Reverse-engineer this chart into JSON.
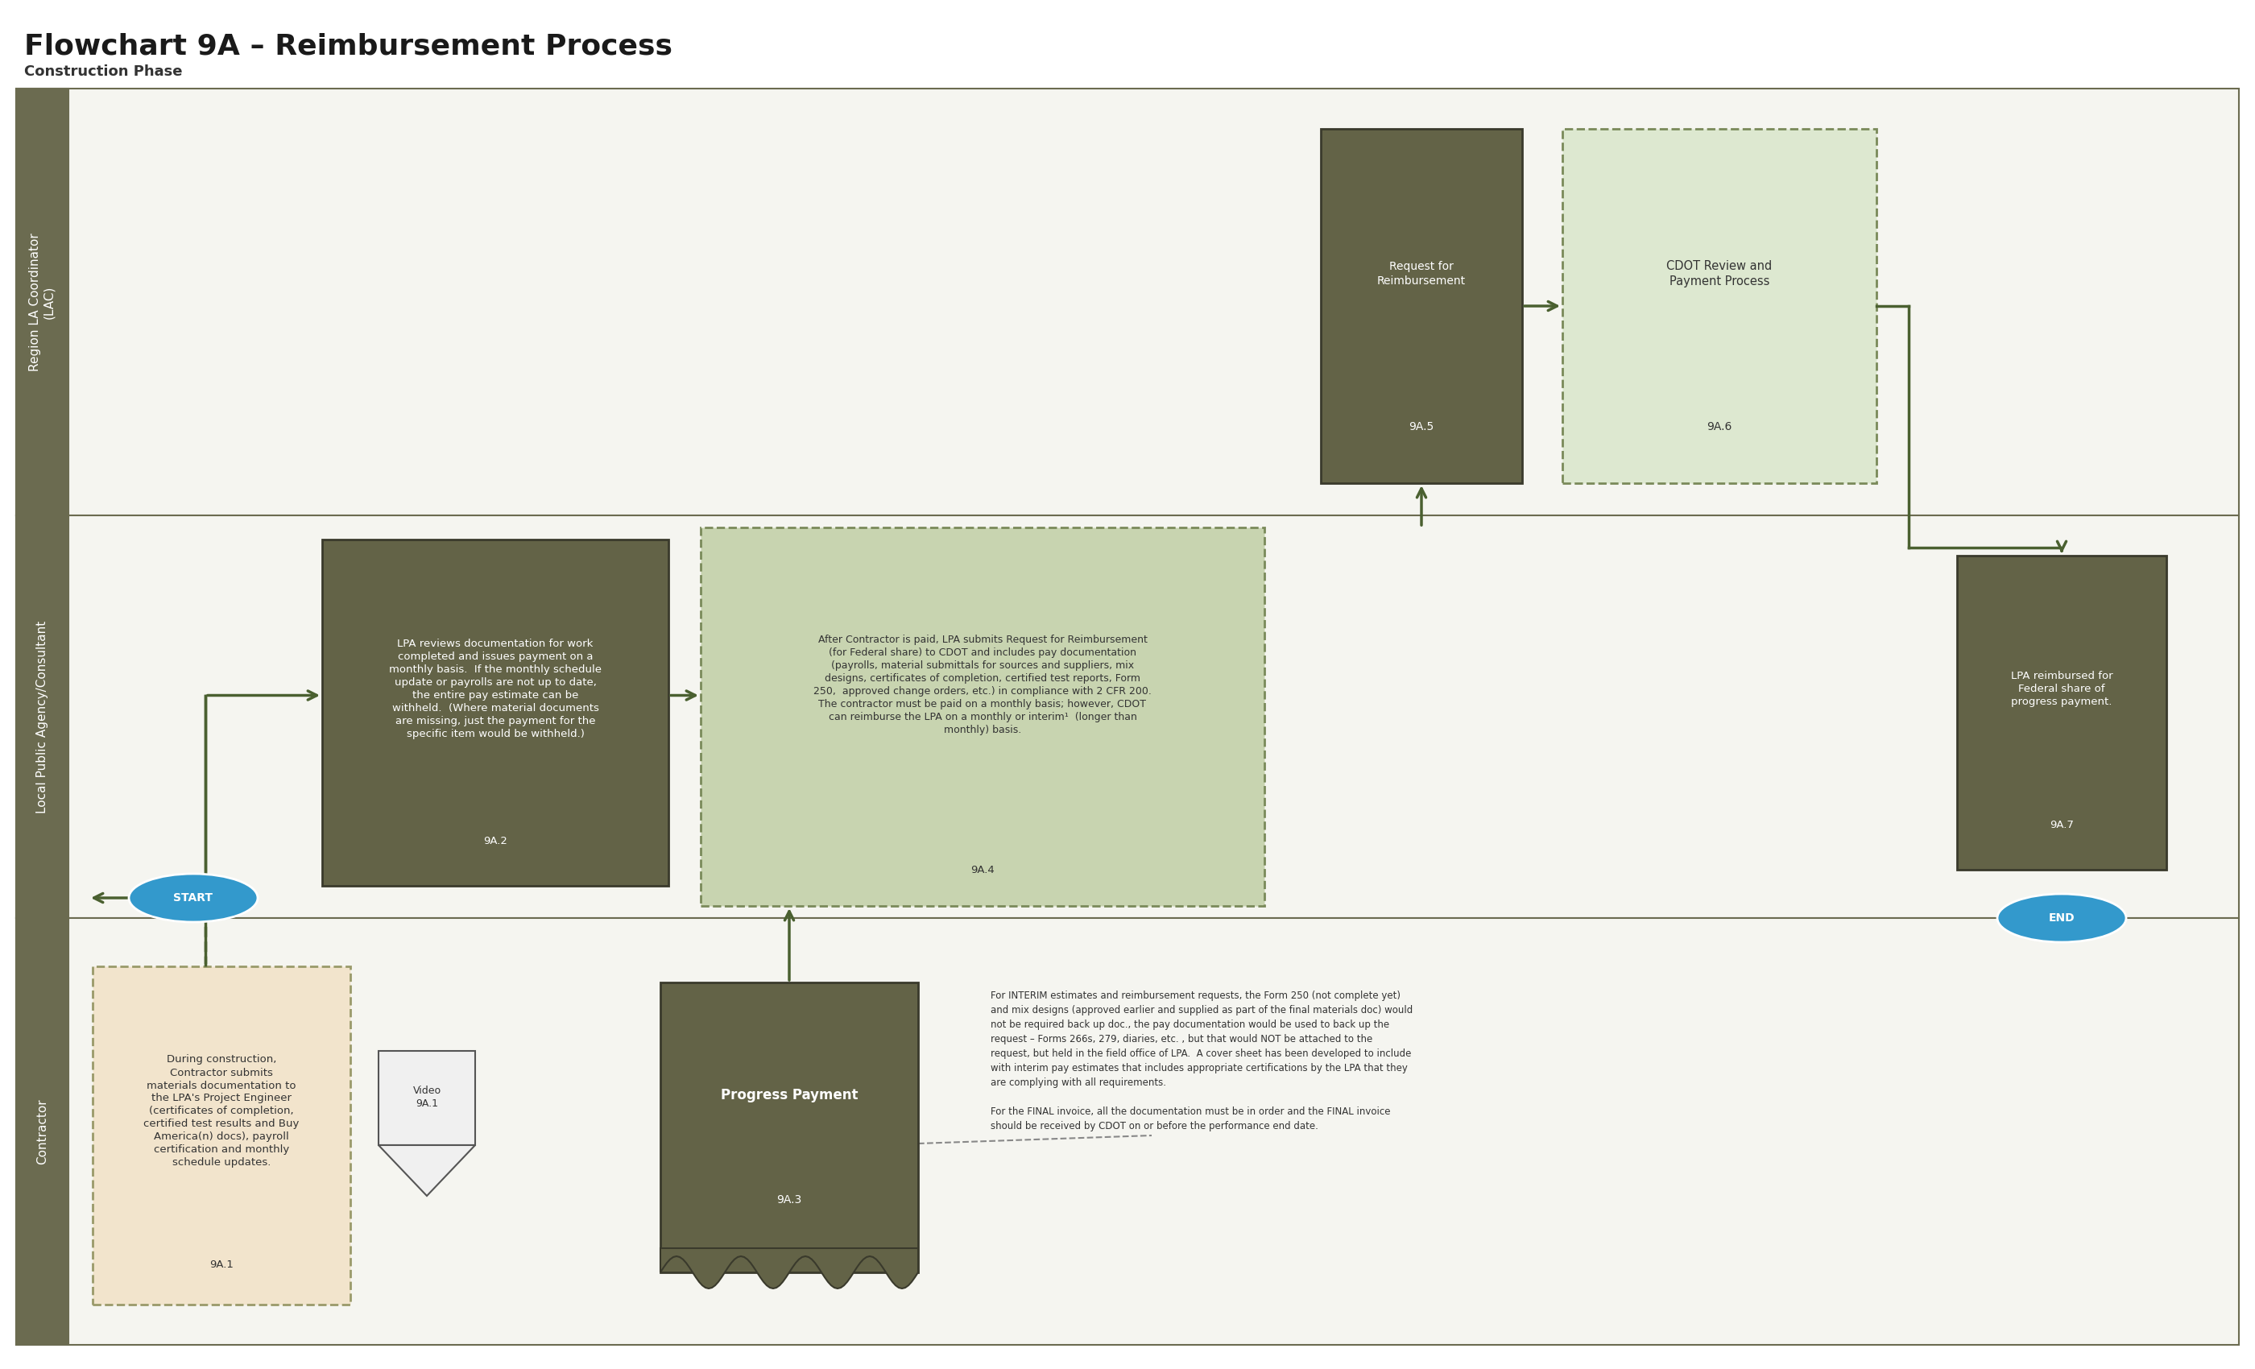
{
  "title": "Flowchart 9A – Reimbursement Process",
  "subtitle": "Construction Phase",
  "bg_color": "#ffffff",
  "lane_header_color": "#6b6b50",
  "lane_border_color": "#6b6b50",
  "dark_olive": "#636347",
  "light_green_fill": "#c8d4b0",
  "light_green_border": "#7a8a5a",
  "peach_fill": "#f2e4cc",
  "peach_border": "#9a9a6a",
  "blue_oval": "#3399cc",
  "arrow_color": "#4a6030",
  "note_text_color": "#333333",
  "note_text1": "For INTERIM estimates and reimbursement requests, the Form 250 (not complete yet)\nand mix designs (approved earlier and supplied as part of the final materials doc) would\nnot be required back up doc., the pay documentation would be used to back up the\nrequest – Forms 266s, 279, diaries, etc. , but that would NOT be attached to the\nrequest, but held in the field office of LPA.  A cover sheet has been developed to include\nwith interim pay estimates that includes appropriate certifications by the LPA that they\nare complying with all requirements.",
  "note_text2": "For the FINAL invoice, all the documentation must be in order and the FINAL invoice\nshould be received by CDOT on or before the performance end date."
}
